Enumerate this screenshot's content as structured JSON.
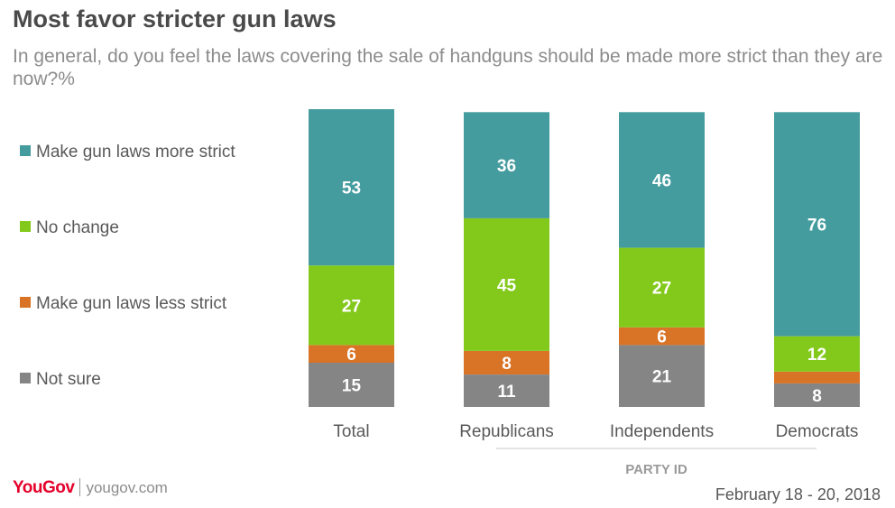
{
  "header": {
    "title": "Most favor stricter gun laws",
    "subtitle": "In general, do you feel the laws covering the sale of handguns should be made more strict than they are now?%"
  },
  "footer": {
    "brand": "YouGov",
    "site": "yougov.com",
    "date": "February 18 - 20, 2018"
  },
  "chart_data": {
    "type": "bar",
    "stacked": true,
    "categories": [
      "Total",
      "Republicans",
      "Independents",
      "Democrats"
    ],
    "group_label": "PARTY ID",
    "grouped_categories": [
      "Republicans",
      "Independents",
      "Democrats"
    ],
    "series": [
      {
        "name": "Make gun laws more strict",
        "values": [
          53,
          36,
          46,
          76
        ],
        "color": "#459c9f",
        "show_labels": [
          true,
          true,
          true,
          true
        ]
      },
      {
        "name": "No change",
        "values": [
          27,
          45,
          27,
          12
        ],
        "color": "#83c91c",
        "show_labels": [
          true,
          true,
          true,
          true
        ]
      },
      {
        "name": "Make gun laws less strict",
        "values": [
          6,
          8,
          6,
          4
        ],
        "color": "#d97325",
        "show_labels": [
          true,
          true,
          true,
          false
        ]
      },
      {
        "name": "Not sure",
        "values": [
          15,
          11,
          21,
          8
        ],
        "color": "#858585",
        "show_labels": [
          true,
          true,
          true,
          true
        ]
      }
    ],
    "legend_position": "left",
    "ylim": [
      0,
      101
    ],
    "grid": false
  }
}
